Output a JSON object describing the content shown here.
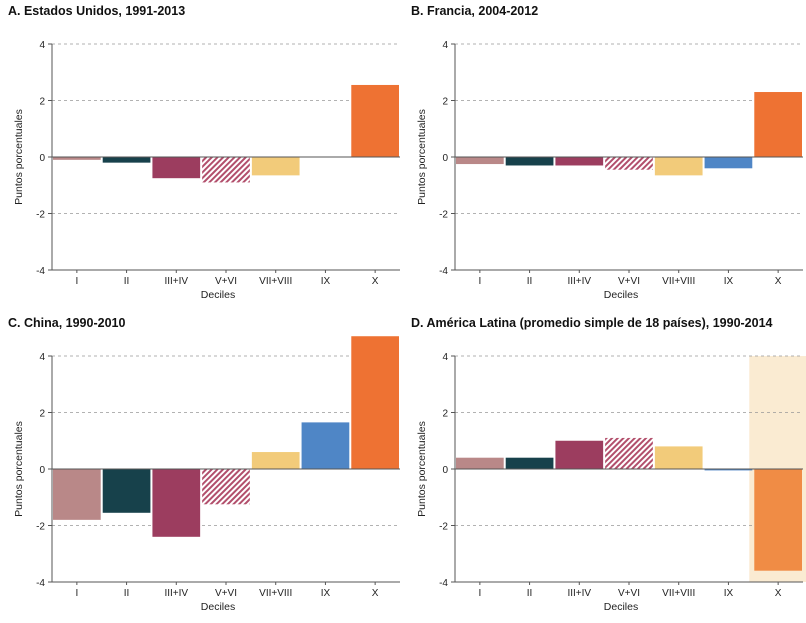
{
  "chart_data": [
    {
      "type": "bar",
      "title": "A. Estados Unidos, 1991-2013",
      "xlabel": "Deciles",
      "ylabel": "Puntos porcentuales",
      "ylim": [
        -4,
        4
      ],
      "yticks": [
        4,
        2,
        0,
        -2,
        -4
      ],
      "grid": true,
      "categories": [
        "I",
        "II",
        "III+IV",
        "V+VI",
        "VII+VIII",
        "IX",
        "X"
      ],
      "values": [
        -0.1,
        -0.2,
        -0.75,
        -0.9,
        -0.65,
        0.0,
        2.55
      ]
    },
    {
      "type": "bar",
      "title": "B. Francia, 2004-2012",
      "xlabel": "Deciles",
      "ylabel": "Puntos porcentuales",
      "ylim": [
        -4,
        4
      ],
      "yticks": [
        4,
        2,
        0,
        -2,
        -4
      ],
      "grid": true,
      "categories": [
        "I",
        "II",
        "III+IV",
        "V+VI",
        "VII+VIII",
        "IX",
        "X"
      ],
      "values": [
        -0.25,
        -0.3,
        -0.3,
        -0.45,
        -0.65,
        -0.4,
        2.3
      ]
    },
    {
      "type": "bar",
      "title": "C. China, 1990-2010",
      "xlabel": "Deciles",
      "ylabel": "Puntos porcentuales",
      "ylim": [
        -4,
        4
      ],
      "yticks": [
        4,
        2,
        0,
        -2,
        -4
      ],
      "grid": true,
      "categories": [
        "I",
        "II",
        "III+IV",
        "V+VI",
        "VII+VIII",
        "IX",
        "X"
      ],
      "values": [
        -1.8,
        -1.55,
        -2.4,
        -1.25,
        0.6,
        1.65,
        4.7
      ]
    },
    {
      "type": "bar",
      "title": "D. América Latina (promedio simple de 18 países), 1990-2014",
      "xlabel": "Deciles",
      "ylabel": "Puntos porcentuales",
      "ylim": [
        -4,
        4
      ],
      "yticks": [
        4,
        2,
        0,
        -2,
        -4
      ],
      "grid": true,
      "categories": [
        "I",
        "II",
        "III+IV",
        "V+VI",
        "VII+VIII",
        "IX",
        "X"
      ],
      "values": [
        0.4,
        0.4,
        1.0,
        1.1,
        0.8,
        -0.05,
        -3.6
      ],
      "highlight_category": "X"
    }
  ],
  "colors": {
    "I": "#b98888",
    "II": "#17414b",
    "III+IV": "#9c3d5f",
    "V+VI": "#b24f6c",
    "VII+VIII": "#f2cb7a",
    "IX": "#4f86c6",
    "X": "#ee7233",
    "X_latam": "#f08c45",
    "highlight": "#faebd2",
    "grid": "#999999",
    "axis": "#555555"
  }
}
